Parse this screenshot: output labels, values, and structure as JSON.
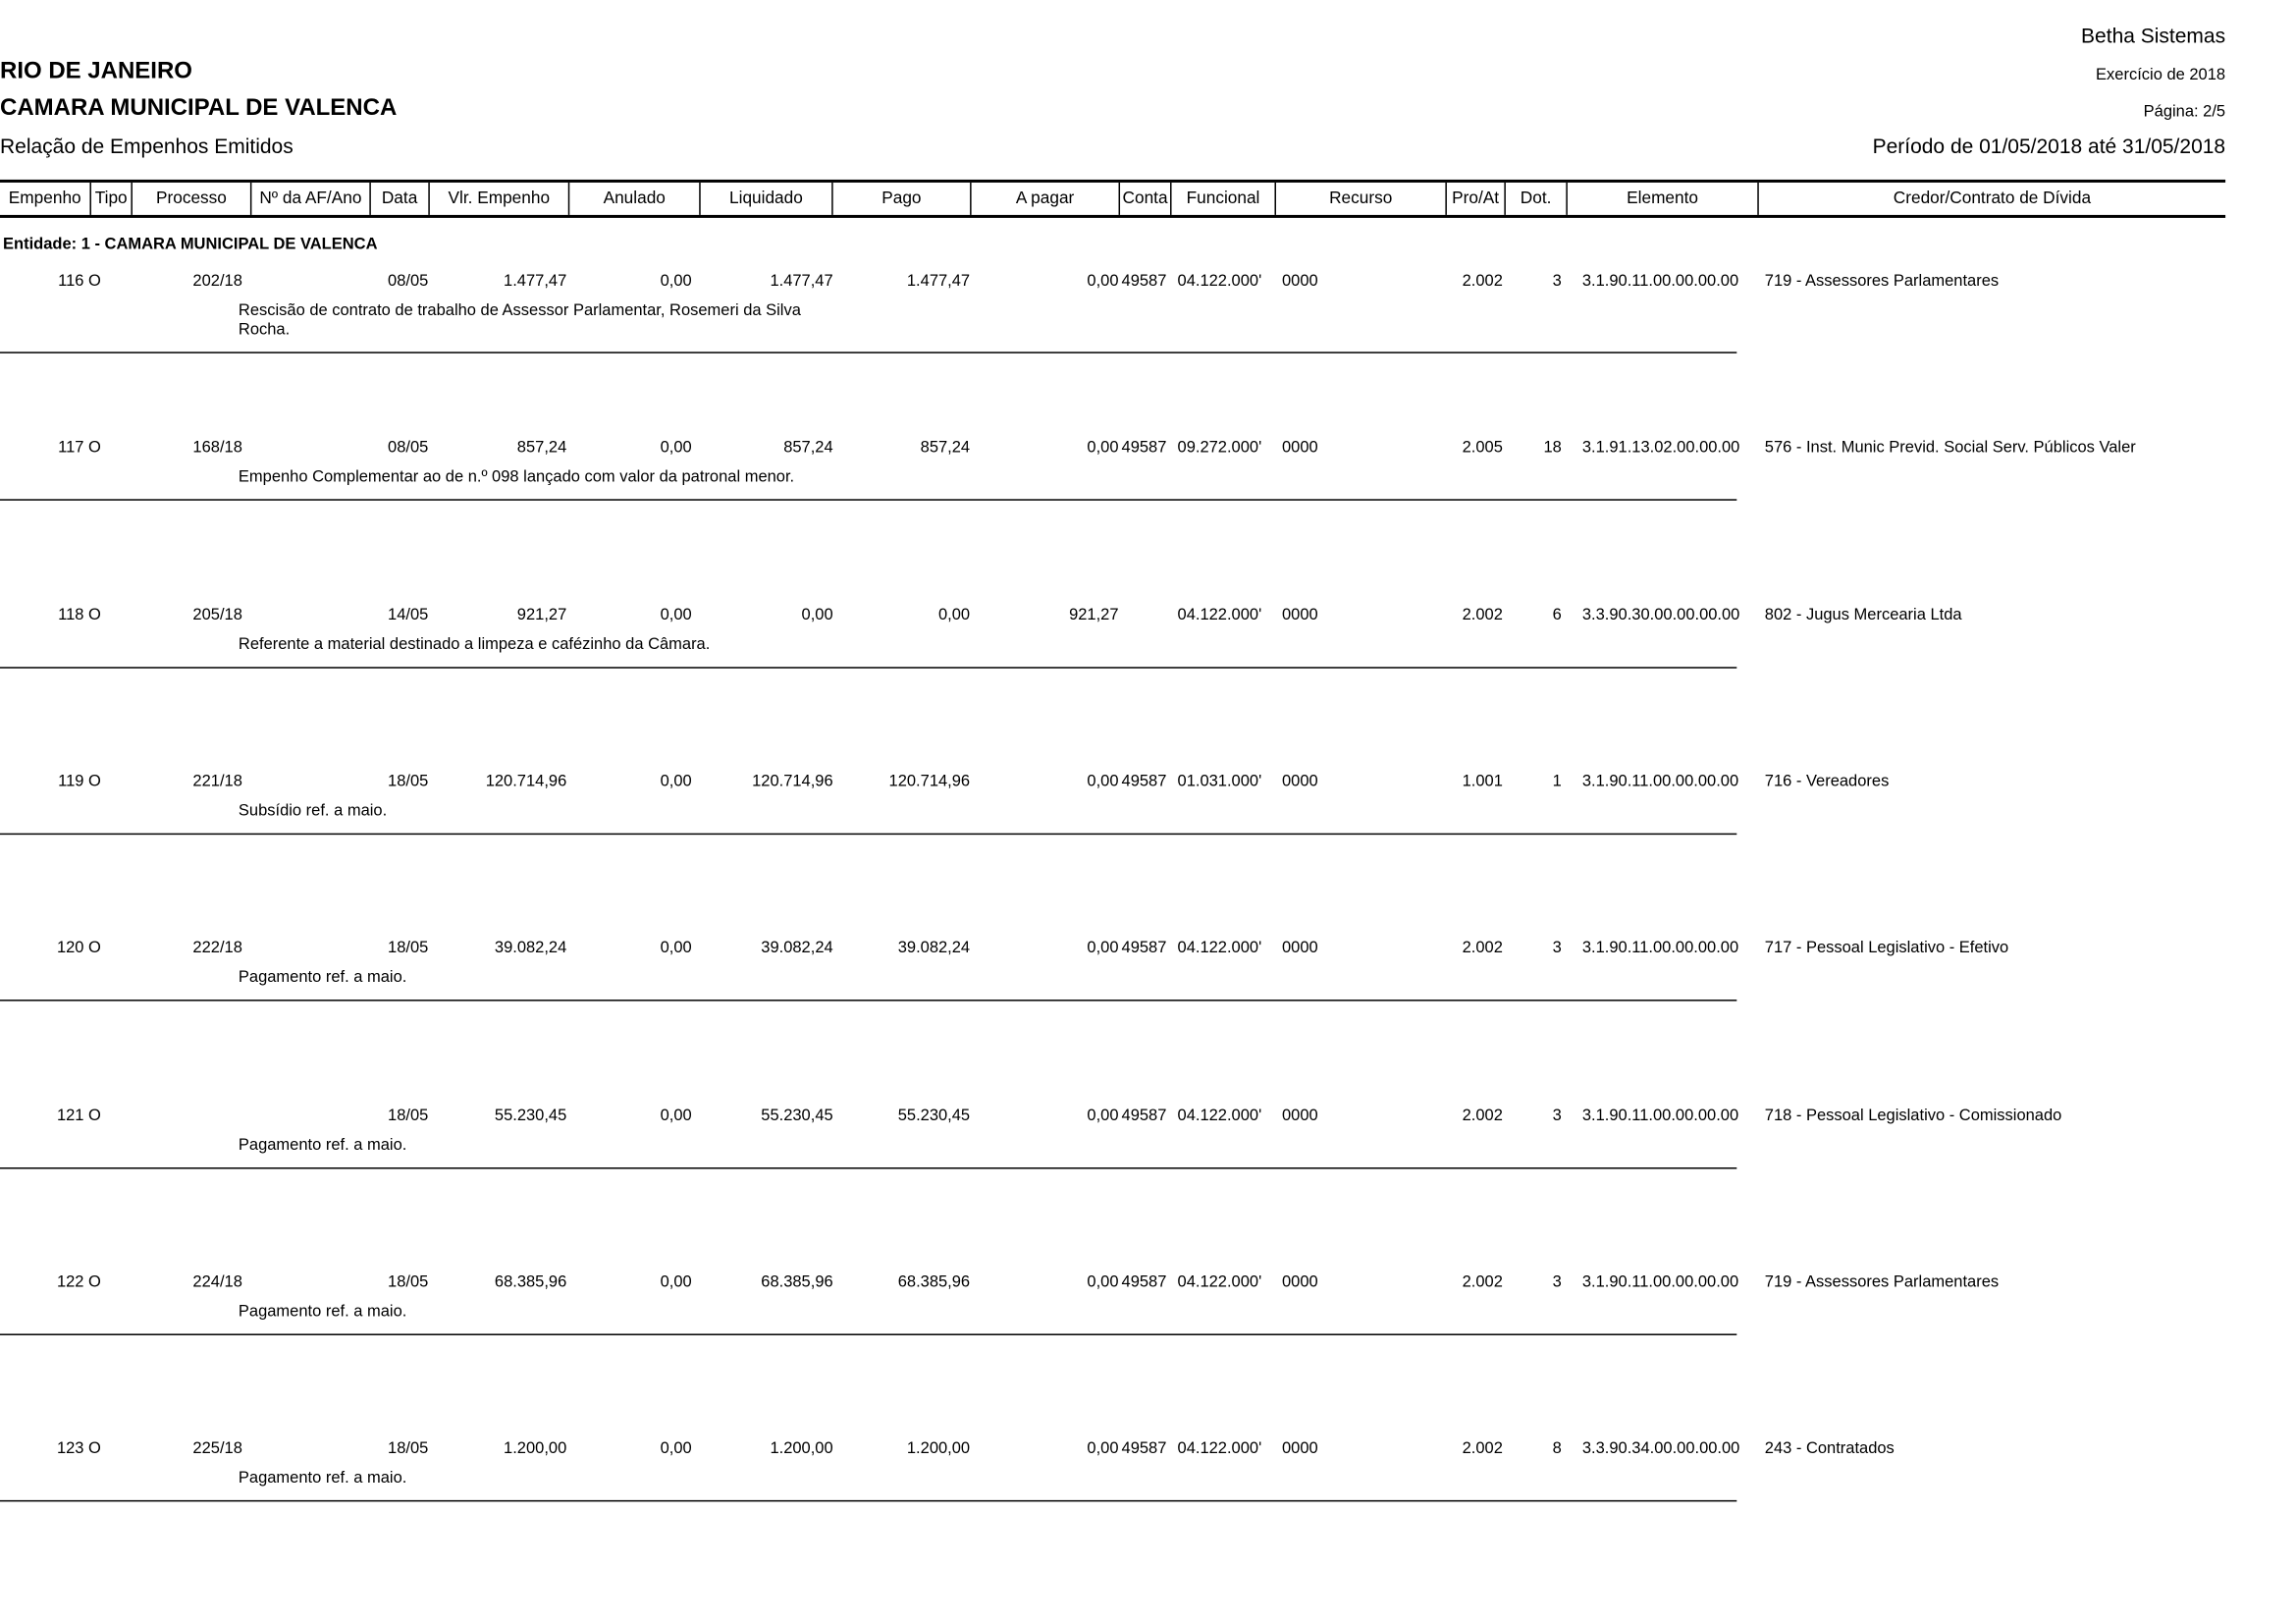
{
  "header": {
    "company": "Betha Sistemas",
    "state": "RIO DE JANEIRO",
    "entity": "CAMARA MUNICIPAL DE VALENCA",
    "report_title": "Relação de Empenhos Emitidos",
    "exercise": "Exercício de 2018",
    "page": "Página: 2/5",
    "period": "Período de 01/05/2018 até 31/05/2018"
  },
  "columns": [
    "Empenho",
    "Tipo",
    "Processo",
    "Nº da AF/Ano",
    "Data",
    "Vlr. Empenho",
    "Anulado",
    "Liquidado",
    "Pago",
    "A pagar",
    "Conta",
    "Funcional",
    "Recurso",
    "Pro/At",
    "Dot.",
    "Elemento",
    "Credor/Contrato de Dívida"
  ],
  "entity_group": "Entidade: 1 - CAMARA MUNICIPAL DE VALENCA",
  "rows": [
    {
      "empenho": "116",
      "tipo": "O",
      "processo": "202/18",
      "af": "",
      "data": "08/05",
      "vlr": "1.477,47",
      "anulado": "0,00",
      "liquidado": "1.477,47",
      "pago": "1.477,47",
      "apagar": "0,00",
      "conta": "49587",
      "funcional": "04.122.000'",
      "recurso": "0000",
      "proat": "2.002",
      "dot": "3",
      "elemento": "3.1.90.11.00.00.00.00",
      "credor": "719 - Assessores Parlamentares",
      "desc": [
        "Rescisão de contrato de trabalho de Assessor Parlamentar, Rosemeri da Silva",
        "Rocha."
      ]
    },
    {
      "empenho": "117",
      "tipo": "O",
      "processo": "168/18",
      "af": "",
      "data": "08/05",
      "vlr": "857,24",
      "anulado": "0,00",
      "liquidado": "857,24",
      "pago": "857,24",
      "apagar": "0,00",
      "conta": "49587",
      "funcional": "09.272.000'",
      "recurso": "0000",
      "proat": "2.005",
      "dot": "18",
      "elemento": "3.1.91.13.02.00.00.00",
      "credor": "576 - Inst. Munic Previd. Social Serv. Públicos Valer",
      "desc": [
        "Empenho Complementar ao de n.º 098 lançado com valor da patronal menor."
      ]
    },
    {
      "empenho": "118",
      "tipo": "O",
      "processo": "205/18",
      "af": "",
      "data": "14/05",
      "vlr": "921,27",
      "anulado": "0,00",
      "liquidado": "0,00",
      "pago": "0,00",
      "apagar": "921,27",
      "conta": "",
      "funcional": "04.122.000'",
      "recurso": "0000",
      "proat": "2.002",
      "dot": "6",
      "elemento": "3.3.90.30.00.00.00.00",
      "credor": "802 - Jugus Mercearia Ltda",
      "desc": [
        "Referente a material destinado a limpeza e cafézinho da Câmara."
      ]
    },
    {
      "empenho": "119",
      "tipo": "O",
      "processo": "221/18",
      "af": "",
      "data": "18/05",
      "vlr": "120.714,96",
      "anulado": "0,00",
      "liquidado": "120.714,96",
      "pago": "120.714,96",
      "apagar": "0,00",
      "conta": "49587",
      "funcional": "01.031.000'",
      "recurso": "0000",
      "proat": "1.001",
      "dot": "1",
      "elemento": "3.1.90.11.00.00.00.00",
      "credor": "716 - Vereadores",
      "desc": [
        "Subsídio ref. a maio."
      ]
    },
    {
      "empenho": "120",
      "tipo": "O",
      "processo": "222/18",
      "af": "",
      "data": "18/05",
      "vlr": "39.082,24",
      "anulado": "0,00",
      "liquidado": "39.082,24",
      "pago": "39.082,24",
      "apagar": "0,00",
      "conta": "49587",
      "funcional": "04.122.000'",
      "recurso": "0000",
      "proat": "2.002",
      "dot": "3",
      "elemento": "3.1.90.11.00.00.00.00",
      "credor": "717 - Pessoal Legislativo - Efetivo",
      "desc": [
        "Pagamento ref. a maio."
      ]
    },
    {
      "empenho": "121",
      "tipo": "O",
      "processo": "",
      "af": "",
      "data": "18/05",
      "vlr": "55.230,45",
      "anulado": "0,00",
      "liquidado": "55.230,45",
      "pago": "55.230,45",
      "apagar": "0,00",
      "conta": "49587",
      "funcional": "04.122.000'",
      "recurso": "0000",
      "proat": "2.002",
      "dot": "3",
      "elemento": "3.1.90.11.00.00.00.00",
      "credor": "718 - Pessoal Legislativo - Comissionado",
      "desc": [
        "Pagamento ref. a maio."
      ]
    },
    {
      "empenho": "122",
      "tipo": "O",
      "processo": "224/18",
      "af": "",
      "data": "18/05",
      "vlr": "68.385,96",
      "anulado": "0,00",
      "liquidado": "68.385,96",
      "pago": "68.385,96",
      "apagar": "0,00",
      "conta": "49587",
      "funcional": "04.122.000'",
      "recurso": "0000",
      "proat": "2.002",
      "dot": "3",
      "elemento": "3.1.90.11.00.00.00.00",
      "credor": "719 - Assessores Parlamentares",
      "desc": [
        "Pagamento ref. a maio."
      ]
    },
    {
      "empenho": "123",
      "tipo": "O",
      "processo": "225/18",
      "af": "",
      "data": "18/05",
      "vlr": "1.200,00",
      "anulado": "0,00",
      "liquidado": "1.200,00",
      "pago": "1.200,00",
      "apagar": "0,00",
      "conta": "49587",
      "funcional": "04.122.000'",
      "recurso": "0000",
      "proat": "2.002",
      "dot": "8",
      "elemento": "3.3.90.34.00.00.00.00",
      "credor": "243 - Contratados",
      "desc": [
        "Pagamento ref. a maio."
      ]
    }
  ]
}
